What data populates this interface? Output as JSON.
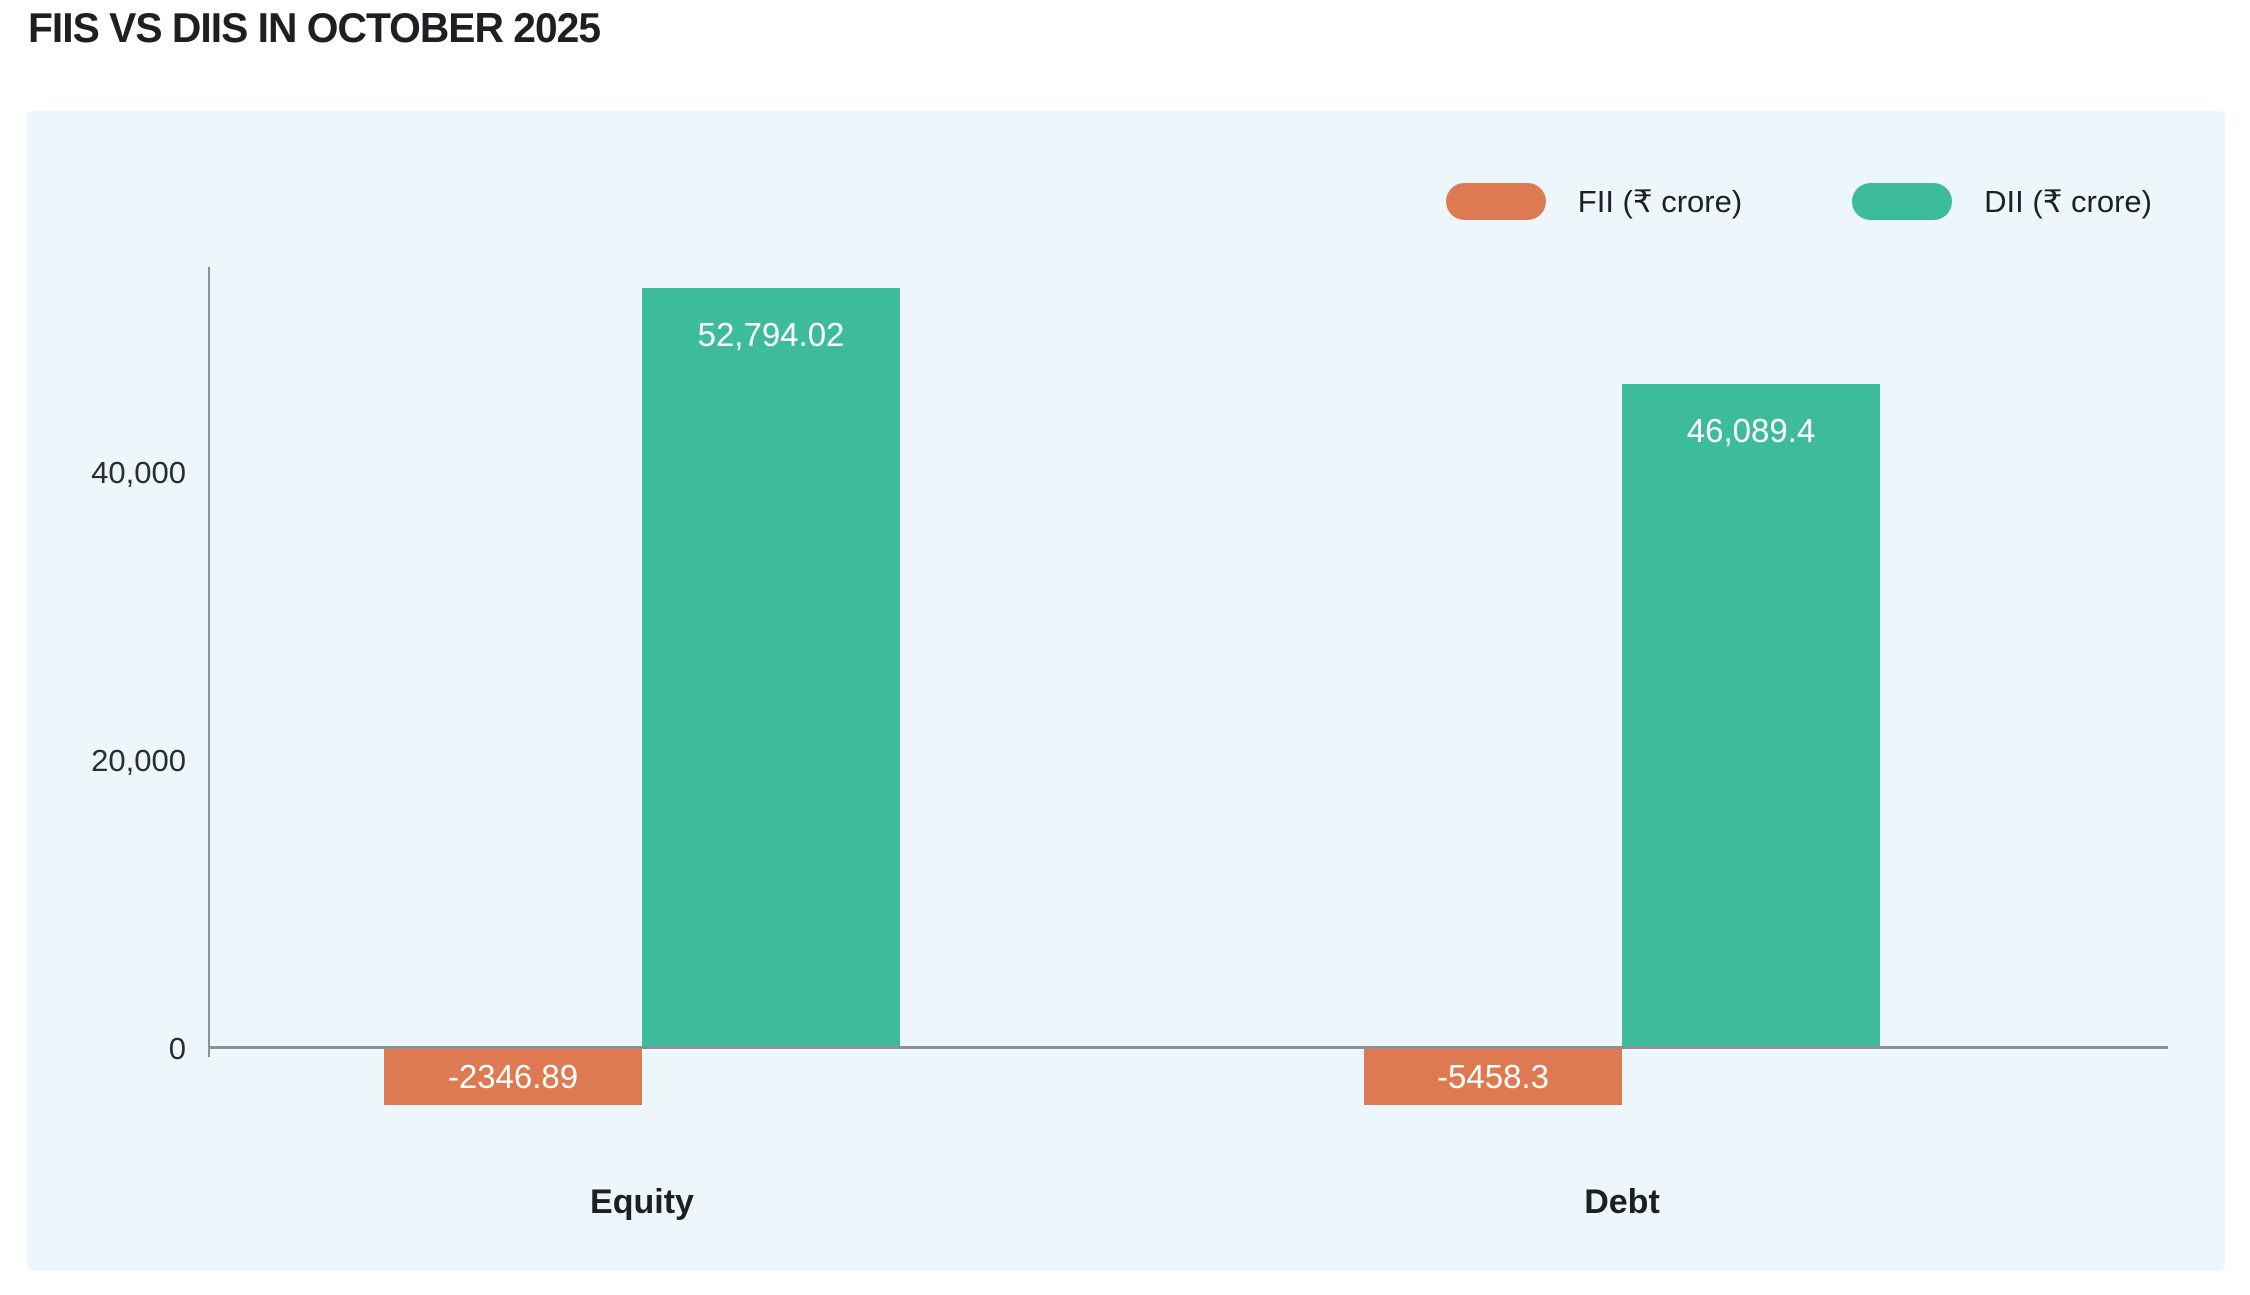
{
  "title": "FIIS VS DIIS IN OCTOBER 2025",
  "chart_data": {
    "type": "bar",
    "title": "FIIS VS DIIS IN OCTOBER 2025",
    "categories": [
      "Equity",
      "Debt"
    ],
    "series": [
      {
        "name": "FII (₹ crore)",
        "color": "#dd7a52",
        "values": [
          -2346.89,
          -5458.3
        ],
        "value_labels": [
          "-2346.89",
          "-5458.3"
        ]
      },
      {
        "name": "DII (₹ crore)",
        "color": "#3dbc9c",
        "values": [
          52794.02,
          46089.4
        ],
        "value_labels": [
          "52,794.02",
          "46,089.4"
        ]
      }
    ],
    "yticks": [
      0,
      20000,
      40000
    ],
    "ytick_labels": [
      "0",
      "20,000",
      "40,000"
    ],
    "ylim": [
      -6500,
      56000
    ],
    "grid": false,
    "legend_position": "top-right",
    "xlabel": "",
    "ylabel": ""
  },
  "colors": {
    "card_background": "#edf6fa",
    "page_background": "#ffffff",
    "axis_line": "#8d9096",
    "text_dark": "#1d1f22",
    "bar_label_text": "#ffffff",
    "fii_orange": "#dd7a52",
    "dii_teal": "#3dbc9c"
  }
}
